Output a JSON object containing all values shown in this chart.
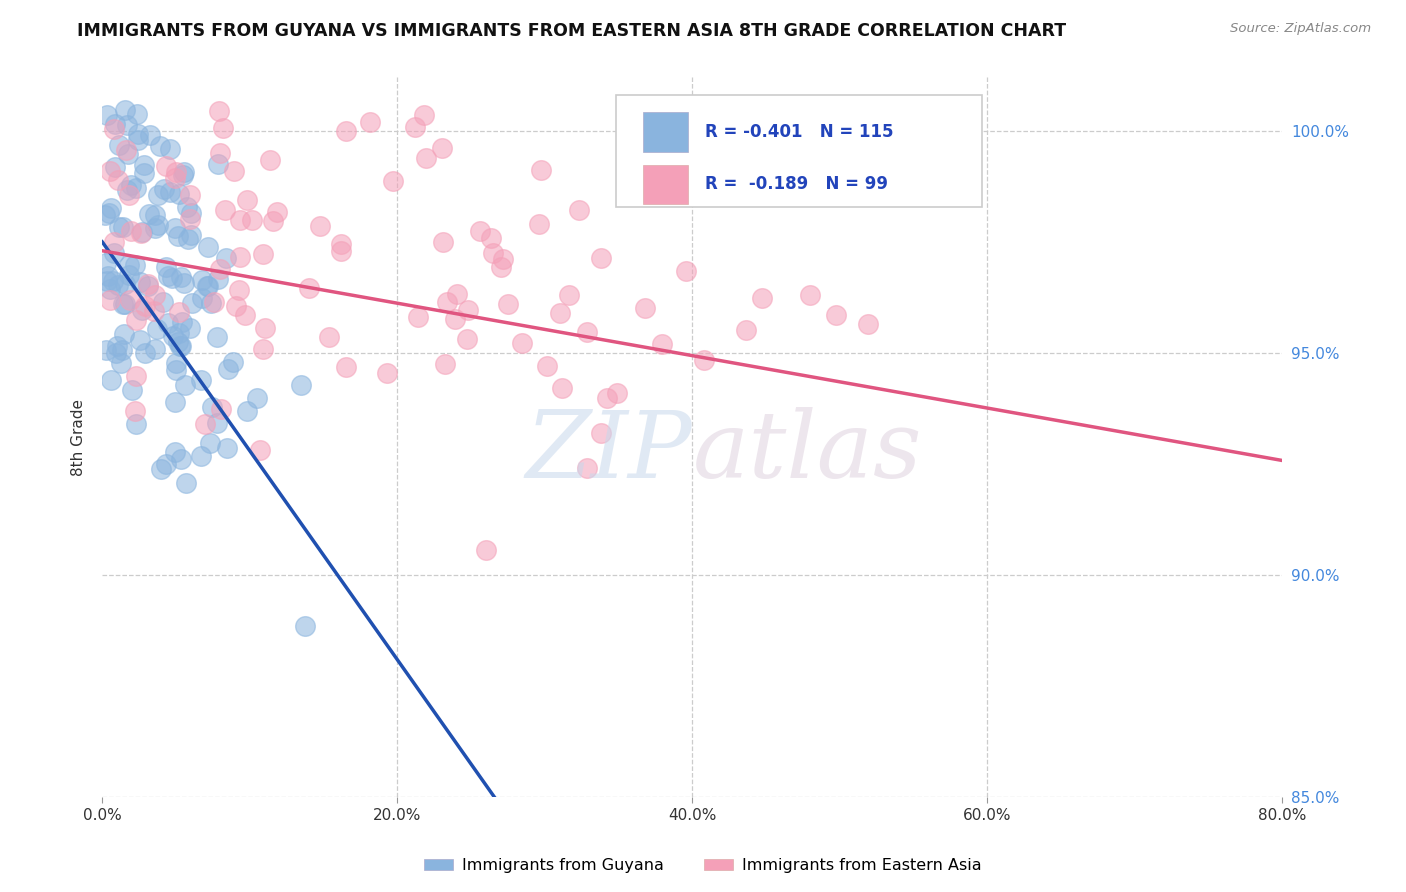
{
  "title": "IMMIGRANTS FROM GUYANA VS IMMIGRANTS FROM EASTERN ASIA 8TH GRADE CORRELATION CHART",
  "source": "Source: ZipAtlas.com",
  "ylabel_label": "8th Grade",
  "legend_label1": "Immigrants from Guyana",
  "legend_label2": "Immigrants from Eastern Asia",
  "R1": -0.401,
  "N1": 115,
  "R2": -0.189,
  "N2": 99,
  "color_blue": "#8ab4de",
  "color_pink": "#f4a0b8",
  "color_blue_line": "#2050b0",
  "color_pink_line": "#e05580",
  "color_dashed": "#aabbcc",
  "x_min": 0.0,
  "x_max": 0.8,
  "y_min": 0.878,
  "y_max": 1.012,
  "x_ticks": [
    0.0,
    0.2,
    0.4,
    0.6,
    0.8
  ],
  "x_tick_labels": [
    "0.0%",
    "20.0%",
    "40.0%",
    "60.0%",
    "80.0%"
  ],
  "y_ticks": [
    0.85,
    0.9,
    0.95,
    1.0
  ],
  "y_tick_labels": [
    "85.0%",
    "90.0%",
    "95.0%",
    "100.0%"
  ]
}
